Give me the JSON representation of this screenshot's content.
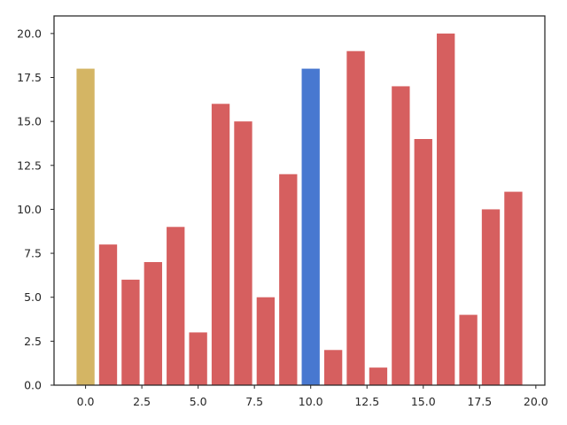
{
  "chart_data": {
    "type": "bar",
    "title": "",
    "xlabel": "",
    "ylabel": "",
    "x": [
      0,
      1,
      2,
      3,
      4,
      5,
      6,
      7,
      8,
      9,
      10,
      11,
      12,
      13,
      14,
      15,
      16,
      17,
      18,
      19
    ],
    "values": [
      18,
      8,
      6,
      7,
      9,
      3,
      16,
      15,
      5,
      12,
      18,
      2,
      19,
      1,
      17,
      14,
      20,
      4,
      10,
      11
    ],
    "bar_colors": [
      "#d4b564",
      "#d65f5f",
      "#d65f5f",
      "#d65f5f",
      "#d65f5f",
      "#d65f5f",
      "#d65f5f",
      "#d65f5f",
      "#d65f5f",
      "#d65f5f",
      "#4878d0",
      "#d65f5f",
      "#d65f5f",
      "#d65f5f",
      "#d65f5f",
      "#d65f5f",
      "#d65f5f",
      "#d65f5f",
      "#d65f5f",
      "#d65f5f"
    ],
    "xlim": [
      -1.4,
      20.4
    ],
    "ylim": [
      0,
      21
    ],
    "xticks": [
      0,
      2.5,
      5,
      7.5,
      10,
      12.5,
      15,
      17.5,
      20
    ],
    "xtick_labels": [
      "0.0",
      "2.5",
      "5.0",
      "7.5",
      "10.0",
      "12.5",
      "15.0",
      "17.5",
      "20.0"
    ],
    "yticks": [
      0,
      2.5,
      5,
      7.5,
      10,
      12.5,
      15,
      17.5,
      20
    ],
    "ytick_labels": [
      "0.0",
      "2.5",
      "5.0",
      "7.5",
      "10.0",
      "12.5",
      "15.0",
      "17.5",
      "20.0"
    ],
    "grid": false,
    "legend": "none"
  }
}
